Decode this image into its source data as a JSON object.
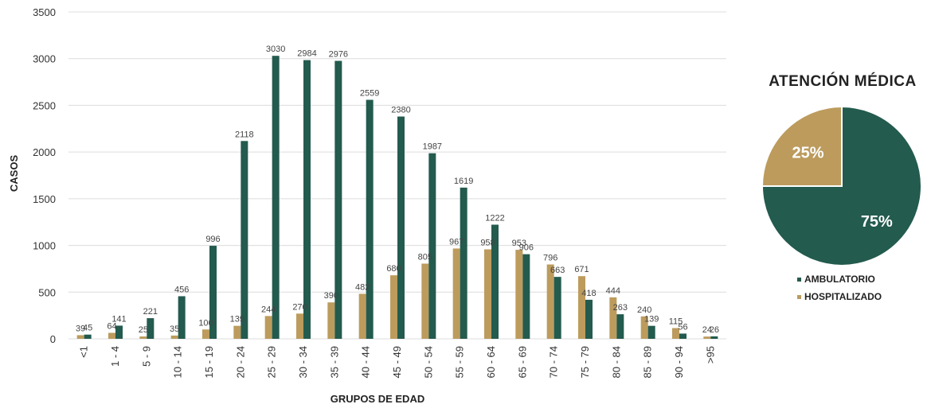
{
  "chart_data": [
    {
      "type": "bar",
      "title": "",
      "xlabel": "GRUPOS DE EDAD",
      "ylabel": "CASOS",
      "ylim": [
        0,
        3500
      ],
      "yticks": [
        0,
        500,
        1000,
        1500,
        2000,
        2500,
        3000,
        3500
      ],
      "grid": true,
      "categories": [
        "<1",
        "1 - 4",
        "5 - 9",
        "10 - 14",
        "15 - 19",
        "20 - 24",
        "25 - 29",
        "30 - 34",
        "35 - 39",
        "40 - 44",
        "45 - 49",
        "50 - 54",
        "55 - 59",
        "60 - 64",
        "65 - 69",
        "70 - 74",
        "75 - 79",
        "80 - 84",
        "85 - 89",
        "90 - 94",
        ">95"
      ],
      "series": [
        {
          "key": "hospitalizado",
          "color": "#BC9B5D",
          "values": [
            39,
            64,
            25,
            35,
            100,
            139,
            244,
            270,
            390,
            482,
            680,
            805,
            967,
            958,
            953,
            796,
            671,
            444,
            240,
            115,
            24
          ]
        },
        {
          "key": "ambulatorio",
          "color": "#235B4E",
          "values": [
            45,
            141,
            221,
            456,
            996,
            2118,
            3030,
            2984,
            2976,
            2559,
            2380,
            1987,
            1619,
            1222,
            906,
            663,
            418,
            263,
            139,
            56,
            26
          ]
        }
      ]
    },
    {
      "type": "pie",
      "title": "ATENCIÓN MÉDICA",
      "slices": [
        {
          "name": "AMBULATORIO",
          "value": 75,
          "label": "75%",
          "color": "#235B4E"
        },
        {
          "name": "HOSPITALIZADO",
          "value": 25,
          "label": "25%",
          "color": "#BC9B5D"
        }
      ],
      "legend_position": "bottom"
    }
  ]
}
